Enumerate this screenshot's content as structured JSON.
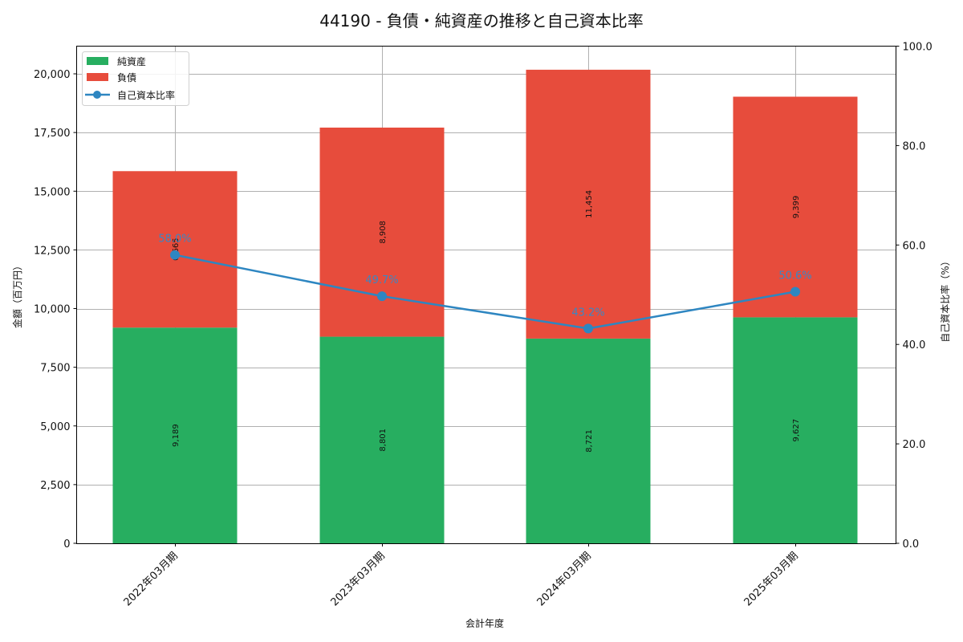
{
  "chart_data": {
    "type": "bar",
    "subtype": "stacked bar with line on secondary axis",
    "title": "44190 - 負債・純資産の推移と自己資本比率",
    "xlabel": "会計年度",
    "ylabel": "金額（百万円）",
    "y2label": "自己資本比率（%）",
    "categories": [
      "2022年03月期",
      "2023年03月期",
      "2024年03月期",
      "2025年03月期"
    ],
    "series": [
      {
        "name": "純資産",
        "type": "bar",
        "color": "#27ae60",
        "values": [
          9189,
          8801,
          8721,
          9627
        ],
        "labels": [
          "9,189",
          "8,801",
          "8,721",
          "9,627"
        ]
      },
      {
        "name": "負債",
        "type": "bar",
        "color": "#e74c3c",
        "values": [
          6665,
          8908,
          11454,
          9399
        ],
        "labels": [
          "6,665",
          "8,908",
          "11,454",
          "9,399"
        ]
      },
      {
        "name": "自己資本比率",
        "type": "line",
        "axis": "right",
        "color": "#2e86c1",
        "values": [
          58.0,
          49.7,
          43.2,
          50.6
        ],
        "labels": [
          "58.0%",
          "49.7%",
          "43.2%",
          "50.6%"
        ]
      }
    ],
    "ylim": [
      0,
      21200
    ],
    "y2lim": [
      0,
      100
    ],
    "yticks": [
      "0",
      "2,500",
      "5,000",
      "7,500",
      "10,000",
      "12,500",
      "15,000",
      "17,500",
      "20,000"
    ],
    "yticks_values": [
      0,
      2500,
      5000,
      7500,
      10000,
      12500,
      15000,
      17500,
      20000
    ],
    "y2ticks": [
      "0.0",
      "20.0",
      "40.0",
      "60.0",
      "80.0",
      "100.0"
    ],
    "y2ticks_values": [
      0,
      20,
      40,
      60,
      80,
      100
    ],
    "grid": true,
    "legend_position": "upper left"
  },
  "legend": {
    "items": [
      {
        "label": "純資産",
        "color": "#27ae60",
        "kind": "patch"
      },
      {
        "label": "負債",
        "color": "#e74c3c",
        "kind": "patch"
      },
      {
        "label": "自己資本比率",
        "color": "#2e86c1",
        "kind": "line-marker"
      }
    ]
  }
}
